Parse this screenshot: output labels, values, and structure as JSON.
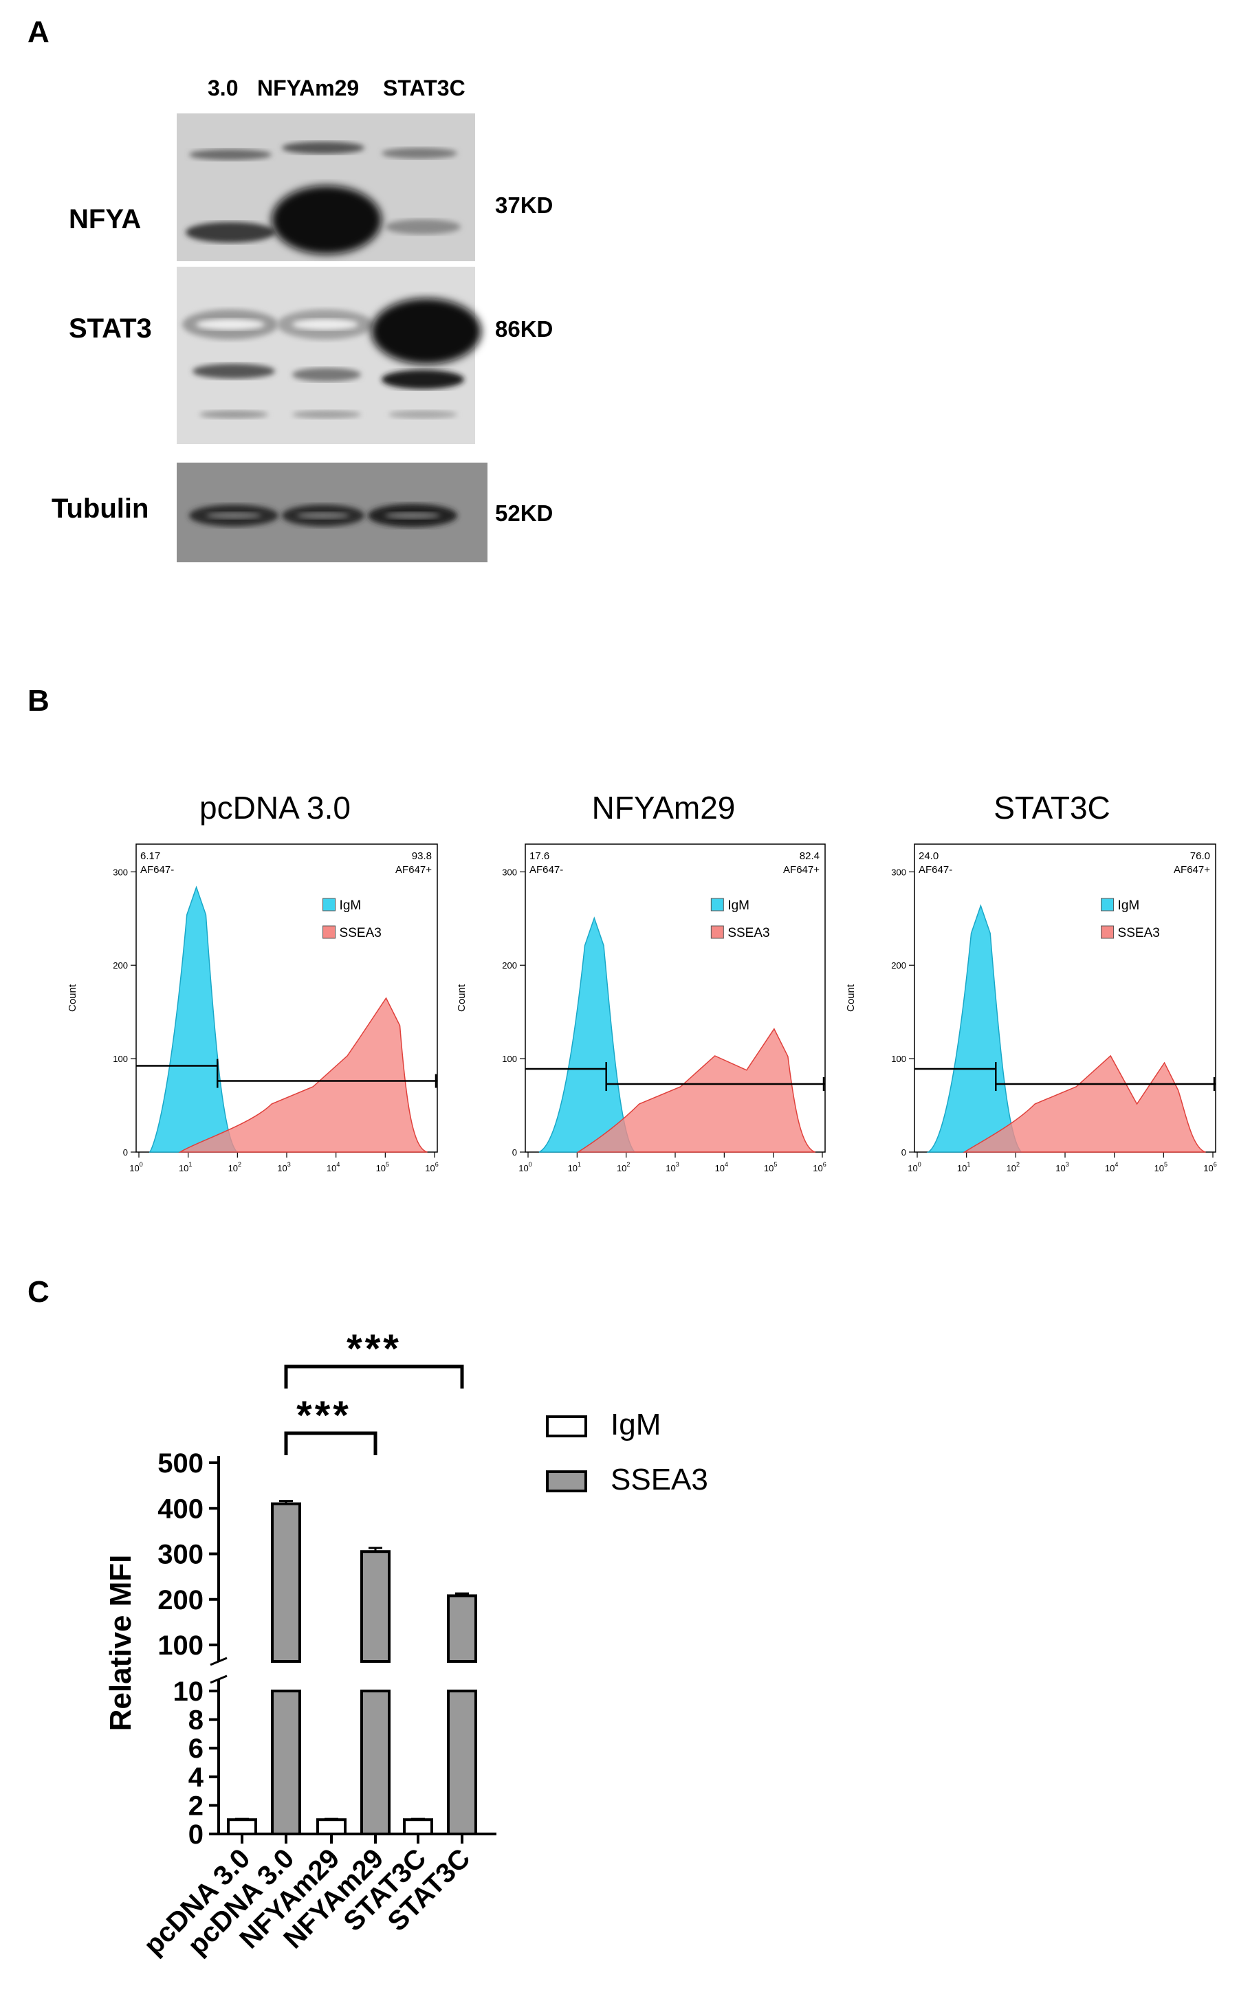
{
  "panels": {
    "a": "A",
    "b": "B",
    "c": "C"
  },
  "western_blot": {
    "lanes": [
      "3.0",
      "NFYAm29",
      "STAT3C"
    ],
    "proteins": [
      {
        "name": "NFYA",
        "kd": "37KD"
      },
      {
        "name": "STAT3",
        "kd": "86KD"
      },
      {
        "name": "Tubulin",
        "kd": "52KD"
      }
    ]
  },
  "flow": {
    "ylabel": "Count",
    "y_ticks": [
      "0",
      "100",
      "200",
      "300"
    ],
    "x_ticks": [
      {
        "base": "10",
        "exp": "0"
      },
      {
        "base": "10",
        "exp": "1"
      },
      {
        "base": "10",
        "exp": "2"
      },
      {
        "base": "10",
        "exp": "3"
      },
      {
        "base": "10",
        "exp": "4"
      },
      {
        "base": "10",
        "exp": "5"
      },
      {
        "base": "10",
        "exp": "6"
      }
    ],
    "gate_neg_label": "AF647-",
    "gate_pos_label": "AF647+",
    "legend": [
      "IgM",
      "SSEA3"
    ],
    "legend_colors": {
      "IgM": "#3fd3ef",
      "SSEA3": "#f58a86"
    },
    "plots": [
      {
        "title": "pcDNA 3.0",
        "neg": "6.17",
        "pos": "93.8",
        "ymax": 300
      },
      {
        "title": "NFYAm29",
        "neg": "17.6",
        "pos": "82.4",
        "ymax": 300
      },
      {
        "title": "STAT3C",
        "neg": "24.0",
        "pos": "76.0",
        "ymax": 300
      }
    ]
  },
  "chart_data": {
    "type": "bar",
    "ylabel": "Relative MFI",
    "categories": [
      "pcDNA 3.0",
      "pcDNA 3.0",
      "NFYAm29",
      "NFYAm29",
      "STAT3C",
      "STAT3C"
    ],
    "series": [
      {
        "name": "IgM",
        "values": [
          1,
          null,
          1,
          null,
          1,
          null
        ],
        "errors": [
          0.05,
          null,
          0.05,
          null,
          0.05,
          null
        ],
        "color": "#ffffff"
      },
      {
        "name": "SSEA3",
        "values": [
          null,
          410,
          null,
          305,
          null,
          208
        ],
        "errors": [
          null,
          6,
          null,
          8,
          null,
          5
        ],
        "color": "#999999"
      }
    ],
    "y_broken_axis": {
      "lower": [
        0,
        10
      ],
      "upper": [
        10,
        500
      ]
    },
    "y_ticks_lower": [
      "0",
      "2",
      "4",
      "6",
      "8",
      "10"
    ],
    "y_ticks_upper": [
      "100",
      "200",
      "300",
      "400",
      "500"
    ],
    "significance": [
      {
        "from": 1,
        "to": 3,
        "label": "***"
      },
      {
        "from": 1,
        "to": 5,
        "label": "***"
      }
    ],
    "legend": [
      "IgM",
      "SSEA3"
    ],
    "legend_placement": "right"
  }
}
